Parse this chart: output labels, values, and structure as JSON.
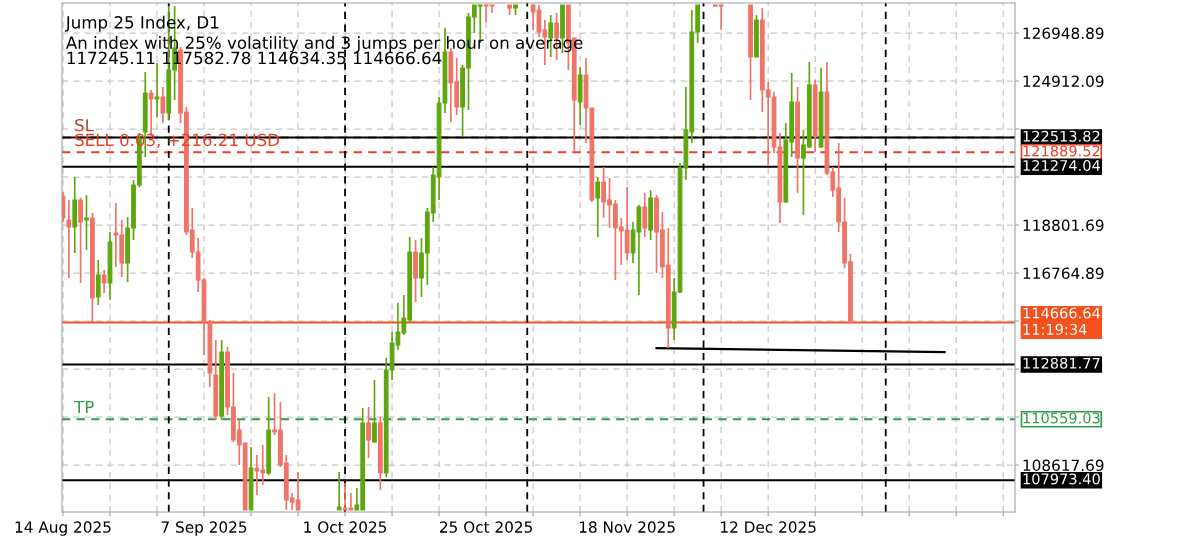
{
  "chart_data": {
    "type": "candlestick",
    "title": "Jump 25 Index, D1",
    "subtitle": "An index with 25% volatility and 3 jumps per hour on average",
    "annotations": [
      "117245.11 117582.78 114634.35 114666.64",
      {
        "text": "SL",
        "x": "2025-08-14",
        "y": 122513.82
      },
      {
        "text": "SELL 0.03, +216.21 USD",
        "x": "2025-08-14",
        "y": 121889.52
      },
      {
        "text": "TP",
        "x": "2025-08-14",
        "y": 110559.03
      }
    ],
    "series": [
      {
        "type": "candlestick",
        "color": "#5ea60f",
        "x": [
          "2025-08-16",
          "2025-08-18",
          "2025-08-20",
          "2025-08-22",
          "2025-08-25",
          "2025-08-26",
          "2025-08-27",
          "2025-08-28",
          "2025-08-30",
          "2025-09-01",
          "2025-09-02",
          "2025-09-10",
          "2025-09-15",
          "2025-09-18",
          "2025-09-30",
          "2025-10-03",
          "2025-10-04",
          "2025-10-06",
          "2025-10-08",
          "2025-10-09",
          "2025-10-10",
          "2025-10-11",
          "2025-10-12",
          "2025-10-14",
          "2025-10-15",
          "2025-10-16",
          "2025-10-17",
          "2025-10-18",
          "2025-10-21",
          "2025-10-22",
          "2025-10-23",
          "2025-10-24",
          "2025-10-30",
          "2025-11-05",
          "2025-11-07",
          "2025-11-10",
          "2025-11-13",
          "2025-11-19",
          "2025-11-20",
          "2025-11-22",
          "2025-11-26",
          "2025-11-27",
          "2025-11-28",
          "2025-11-29",
          "2025-11-30",
          "2025-12-10",
          "2025-12-15",
          "2025-12-16",
          "2025-12-18",
          "2025-12-19",
          "2025-12-21"
        ],
        "ohlc": [
          [
            118717,
            120839,
            117614,
            119863
          ],
          [
            119014,
            120075,
            117741,
            119099
          ],
          [
            115747,
            117317,
            115408,
            116681
          ],
          [
            116341,
            118505,
            115620,
            118081
          ],
          [
            117190,
            119142,
            116384,
            118675
          ],
          [
            118675,
            120712,
            118166,
            120499
          ],
          [
            120499,
            122706,
            120415,
            122494
          ],
          [
            122748,
            125294,
            121687,
            124403
          ],
          [
            124148,
            125676,
            123385,
            124233
          ],
          [
            123554,
            128094,
            123257,
            125379
          ],
          [
            125379,
            128094,
            124106,
            126312
          ],
          [
            110698,
            113923,
            110528,
            113414
          ],
          [
            106710,
            109383,
            106710,
            108492
          ],
          [
            108280,
            111504,
            108195,
            110104
          ],
          [
            106710,
            108322,
            106710,
            106837
          ],
          [
            106710,
            107643,
            106710,
            106922
          ],
          [
            106710,
            111038,
            106710,
            110401
          ],
          [
            109595,
            112226,
            109553,
            110401
          ],
          [
            108280,
            113159,
            108110,
            112650
          ],
          [
            112650,
            114262,
            112226,
            113796
          ],
          [
            113711,
            115493,
            113498,
            114262
          ],
          [
            114220,
            115832,
            114135,
            114856
          ],
          [
            114771,
            118293,
            114687,
            117657
          ],
          [
            116553,
            118251,
            115747,
            117614
          ],
          [
            117614,
            119524,
            116256,
            119354
          ],
          [
            119311,
            121263,
            118930,
            120924
          ],
          [
            120839,
            124233,
            119863,
            123979
          ],
          [
            123979,
            127161,
            123554,
            126143
          ],
          [
            123809,
            125591,
            122536,
            125464
          ],
          [
            125464,
            127797,
            123682,
            127628
          ],
          [
            127628,
            128137,
            126949,
            128137
          ],
          [
            128094,
            128137,
            126525,
            128137
          ],
          [
            128010,
            128137,
            127713,
            128137
          ],
          [
            126737,
            127713,
            125930,
            127373
          ],
          [
            126737,
            128137,
            126100,
            128137
          ],
          [
            124021,
            125506,
            123045,
            125167
          ],
          [
            119948,
            120839,
            118293,
            120627
          ],
          [
            117614,
            118930,
            117190,
            118590
          ],
          [
            118505,
            119651,
            115832,
            119566
          ],
          [
            118590,
            120287,
            118166,
            119948
          ],
          [
            114432,
            116553,
            113923,
            115959
          ],
          [
            115959,
            121433,
            115917,
            121221
          ],
          [
            121221,
            124658,
            120712,
            122833
          ],
          [
            122748,
            127925,
            122282,
            126991
          ],
          [
            126991,
            128137,
            126525,
            128137
          ],
          [
            125930,
            127713,
            125930,
            127500
          ],
          [
            119778,
            123130,
            119736,
            122409
          ],
          [
            122324,
            125252,
            121687,
            124021
          ],
          [
            121645,
            122833,
            119227,
            122197
          ],
          [
            122112,
            125718,
            122069,
            124742
          ],
          [
            122112,
            125464,
            122069,
            124445
          ]
        ]
      },
      {
        "type": "candlestick",
        "color": "#ef7468",
        "x": [
          "2025-08-14",
          "2025-08-15",
          "2025-08-17",
          "2025-08-19",
          "2025-08-21",
          "2025-08-23",
          "2025-08-24",
          "2025-08-29",
          "2025-08-31",
          "2025-09-03",
          "2025-09-04",
          "2025-09-05",
          "2025-09-06",
          "2025-09-07",
          "2025-09-08",
          "2025-09-09",
          "2025-09-11",
          "2025-09-12",
          "2025-09-13",
          "2025-09-14",
          "2025-09-16",
          "2025-09-17",
          "2025-09-19",
          "2025-09-20",
          "2025-09-21",
          "2025-09-22",
          "2025-09-23",
          "2025-10-01",
          "2025-10-02",
          "2025-10-05",
          "2025-10-07",
          "2025-10-13",
          "2025-10-19",
          "2025-10-20",
          "2025-10-25",
          "2025-10-26",
          "2025-10-29",
          "2025-11-02",
          "2025-11-03",
          "2025-11-04",
          "2025-11-06",
          "2025-11-08",
          "2025-11-09",
          "2025-11-11",
          "2025-11-12",
          "2025-11-14",
          "2025-11-15",
          "2025-11-16",
          "2025-11-17",
          "2025-11-18",
          "2025-11-21",
          "2025-11-23",
          "2025-11-24",
          "2025-11-25",
          "2025-12-03",
          "2025-12-04",
          "2025-12-09",
          "2025-12-11",
          "2025-12-12",
          "2025-12-13",
          "2025-12-14",
          "2025-12-17",
          "2025-12-20",
          "2025-12-22",
          "2025-12-23",
          "2025-12-24",
          "2025-12-25",
          "2025-12-26"
        ],
        "ohlc": [
          [
            120033,
            120202,
            118930,
            119099
          ],
          [
            119014,
            119863,
            116553,
            118717
          ],
          [
            119863,
            119948,
            116341,
            118930
          ],
          [
            119099,
            119311,
            114687,
            115705
          ],
          [
            116681,
            116893,
            115917,
            116341
          ],
          [
            118463,
            119736,
            117020,
            118378
          ],
          [
            118378,
            119014,
            116596,
            117190
          ],
          [
            124403,
            124530,
            122536,
            124148
          ],
          [
            124233,
            124658,
            123130,
            123554
          ],
          [
            126227,
            126355,
            123130,
            123554
          ],
          [
            123597,
            123809,
            118378,
            118505
          ],
          [
            118590,
            119524,
            117402,
            117657
          ],
          [
            117657,
            118251,
            115959,
            116469
          ],
          [
            116469,
            116553,
            113286,
            114687
          ],
          [
            114687,
            114771,
            111929,
            112523
          ],
          [
            112438,
            113923,
            110528,
            110698
          ],
          [
            113414,
            113626,
            110741,
            111080
          ],
          [
            111080,
            112523,
            109595,
            109680
          ],
          [
            110104,
            110528,
            108619,
            109468
          ],
          [
            109553,
            109553,
            106710,
            106710
          ],
          [
            108492,
            109043,
            107346,
            108364
          ],
          [
            108407,
            109468,
            107770,
            108280
          ],
          [
            110104,
            111674,
            109892,
            110019
          ],
          [
            110104,
            111292,
            108534,
            108619
          ],
          [
            108704,
            109043,
            106710,
            107134
          ],
          [
            107219,
            107431,
            106710,
            107049
          ],
          [
            107134,
            108322,
            106710,
            106710
          ],
          [
            106795,
            107855,
            106710,
            106710
          ],
          [
            106795,
            107431,
            106710,
            106710
          ],
          [
            110401,
            111080,
            108916,
            109680
          ],
          [
            110401,
            110656,
            107558,
            108280
          ],
          [
            117657,
            118166,
            115535,
            116553
          ],
          [
            126143,
            126312,
            123173,
            124827
          ],
          [
            124870,
            125888,
            123470,
            123809
          ],
          [
            128137,
            128137,
            127416,
            128094
          ],
          [
            128137,
            128137,
            127797,
            128094
          ],
          [
            128137,
            128137,
            127713,
            128010
          ],
          [
            128137,
            128137,
            127076,
            127840
          ],
          [
            127925,
            128137,
            126779,
            126991
          ],
          [
            127076,
            127500,
            125591,
            126779
          ],
          [
            127373,
            127797,
            125803,
            126737
          ],
          [
            128137,
            128137,
            125379,
            126525
          ],
          [
            126737,
            126737,
            121900,
            124106
          ],
          [
            125167,
            125888,
            122282,
            123767
          ],
          [
            123767,
            123767,
            119778,
            119863
          ],
          [
            120627,
            121263,
            119099,
            119778
          ],
          [
            119863,
            120796,
            118675,
            119651
          ],
          [
            119693,
            119863,
            116469,
            118675
          ],
          [
            118717,
            119099,
            117105,
            118548
          ],
          [
            118590,
            120415,
            117317,
            117614
          ],
          [
            119566,
            120160,
            118293,
            118675
          ],
          [
            119948,
            120075,
            116766,
            118505
          ],
          [
            118590,
            119354,
            116553,
            117020
          ],
          [
            117105,
            118675,
            113583,
            114432
          ],
          [
            128137,
            128137,
            128052,
            128094
          ],
          [
            128137,
            128137,
            127076,
            128094
          ],
          [
            128137,
            128137,
            124106,
            125930
          ],
          [
            127500,
            128010,
            123597,
            124530
          ],
          [
            124530,
            124870,
            121348,
            124233
          ],
          [
            124233,
            124445,
            121857,
            122112
          ],
          [
            122112,
            122706,
            118887,
            119778
          ],
          [
            124021,
            124658,
            120160,
            121645
          ],
          [
            124742,
            124955,
            121900,
            122536
          ],
          [
            124445,
            125718,
            120924,
            121009
          ],
          [
            121051,
            121263,
            119990,
            120287
          ],
          [
            120372,
            122282,
            118505,
            118930
          ],
          [
            118930,
            119948,
            116978,
            117190
          ],
          [
            117245.11,
            117582.78,
            114634.35,
            114666.64
          ]
        ]
      },
      {
        "type": "line",
        "color": "#000000",
        "x": [
          "2025-11-23",
          "2026-01-11"
        ],
        "values": [
          113580,
          113410
        ]
      }
    ],
    "ref_lines": [
      {
        "axis": "y",
        "value": 122513.82,
        "label": null,
        "color": "#a0522d",
        "line_style": "dashed"
      },
      {
        "axis": "y",
        "value": 122513.82,
        "label": "122513.82",
        "color": "#000000",
        "line_style": "solid"
      },
      {
        "axis": "y",
        "value": 121889.52,
        "label": "121889.52",
        "color": "#e8402a",
        "line_style": "dashed"
      },
      {
        "axis": "y",
        "value": 121274.04,
        "label": "121274.04",
        "color": "#000000",
        "line_style": "solid"
      },
      {
        "axis": "y",
        "value": 114666.64,
        "label": "114666.64\n11:19:34",
        "color": "#f4511e",
        "line_style": "solid"
      },
      {
        "axis": "y",
        "value": 112881.77,
        "label": "112881.77",
        "color": "#000000",
        "line_style": "solid"
      },
      {
        "axis": "y",
        "value": 110559.03,
        "label": "110559.03",
        "color": "#2e9e4a",
        "line_style": "dashed"
      },
      {
        "axis": "y",
        "value": 107973.4,
        "label": "107973.40",
        "color": "#000000",
        "line_style": "solid"
      },
      {
        "axis": "x",
        "value": "2025-09-01",
        "label": null,
        "color": "#000000",
        "line_style": "dashed"
      },
      {
        "axis": "x",
        "value": "2025-10-01",
        "label": null,
        "color": "#000000",
        "line_style": "dashed"
      },
      {
        "axis": "x",
        "value": "2025-11-01",
        "label": null,
        "color": "#000000",
        "line_style": "dashed"
      },
      {
        "axis": "x",
        "value": "2025-12-01",
        "label": null,
        "color": "#000000",
        "line_style": "dashed"
      },
      {
        "axis": "x",
        "value": "2026-01-01",
        "label": null,
        "color": "#000000",
        "line_style": "dashed"
      }
    ],
    "xlim": [
      "2025-08-13T20:00",
      "2026-01-23"
    ],
    "xticks": [
      {
        "value": "2025-08-14",
        "label": "14 Aug 2025"
      },
      {
        "value": "2025-08-22",
        "label": null
      },
      {
        "value": "2025-08-30",
        "label": null
      },
      {
        "value": "2025-09-07",
        "label": "7 Sep 2025"
      },
      {
        "value": "2025-09-15",
        "label": null
      },
      {
        "value": "2025-09-23",
        "label": null
      },
      {
        "value": "2025-10-01",
        "label": "1 Oct 2025"
      },
      {
        "value": "2025-10-09",
        "label": null
      },
      {
        "value": "2025-10-17",
        "label": null
      },
      {
        "value": "2025-10-25",
        "label": "25 Oct 2025"
      },
      {
        "value": "2025-11-02",
        "label": null
      },
      {
        "value": "2025-11-10",
        "label": null
      },
      {
        "value": "2025-11-18",
        "label": "18 Nov 2025"
      },
      {
        "value": "2025-11-26",
        "label": null
      },
      {
        "value": "2025-12-04",
        "label": null
      },
      {
        "value": "2025-12-12",
        "label": "12 Dec 2025"
      },
      {
        "value": "2025-12-20",
        "label": null
      },
      {
        "value": "2025-12-28",
        "label": null
      },
      {
        "value": "2026-01-05",
        "label": null
      },
      {
        "value": "2026-01-13",
        "label": null
      },
      {
        "value": "2026-01-21",
        "label": null
      }
    ],
    "ylim": [
      106625,
      128222
    ],
    "yticks": [
      {
        "value": 108617.69,
        "label": "108617.69"
      },
      {
        "value": 110654.49,
        "label": null
      },
      {
        "value": 112691.29,
        "label": null
      },
      {
        "value": 114728.09,
        "label": null
      },
      {
        "value": 116764.89,
        "label": "116764.89"
      },
      {
        "value": 118801.69,
        "label": "118801.69"
      },
      {
        "value": 120838.49,
        "label": null
      },
      {
        "value": 122875.29,
        "label": null
      },
      {
        "value": 124912.09,
        "label": "124912.09"
      },
      {
        "value": 126948.89,
        "label": "126948.89"
      }
    ],
    "grid": true
  }
}
